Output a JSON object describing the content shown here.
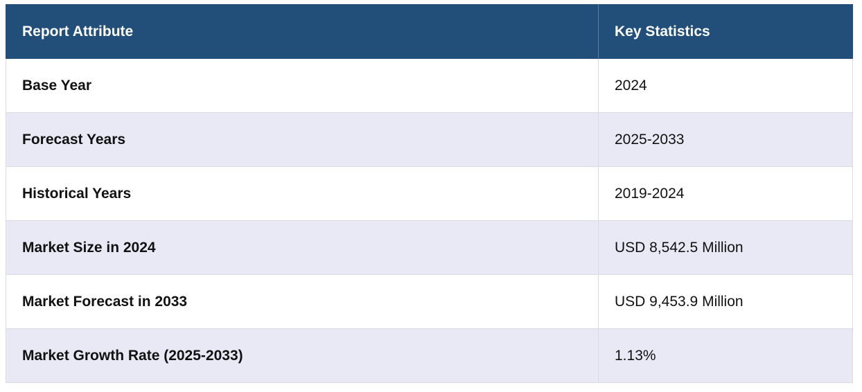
{
  "table": {
    "headers": [
      "Report Attribute",
      "Key Statistics"
    ],
    "rows": [
      {
        "attribute": "Base Year",
        "value": "2024"
      },
      {
        "attribute": "Forecast Years",
        "value": "2025-2033"
      },
      {
        "attribute": "Historical Years",
        "value": "2019-2024"
      },
      {
        "attribute": "Market Size in 2024",
        "value": "USD 8,542.5 Million"
      },
      {
        "attribute": "Market Forecast in 2033",
        "value": "USD 9,453.9 Million"
      },
      {
        "attribute": "Market Growth Rate (2025-2033)",
        "value": "1.13%"
      }
    ]
  },
  "colors": {
    "header_bg": "#214f7a",
    "header_text": "#ffffff",
    "row_alt_bg": "#e8e9f4",
    "row_bg": "#ffffff",
    "border": "#d9dbe3"
  }
}
